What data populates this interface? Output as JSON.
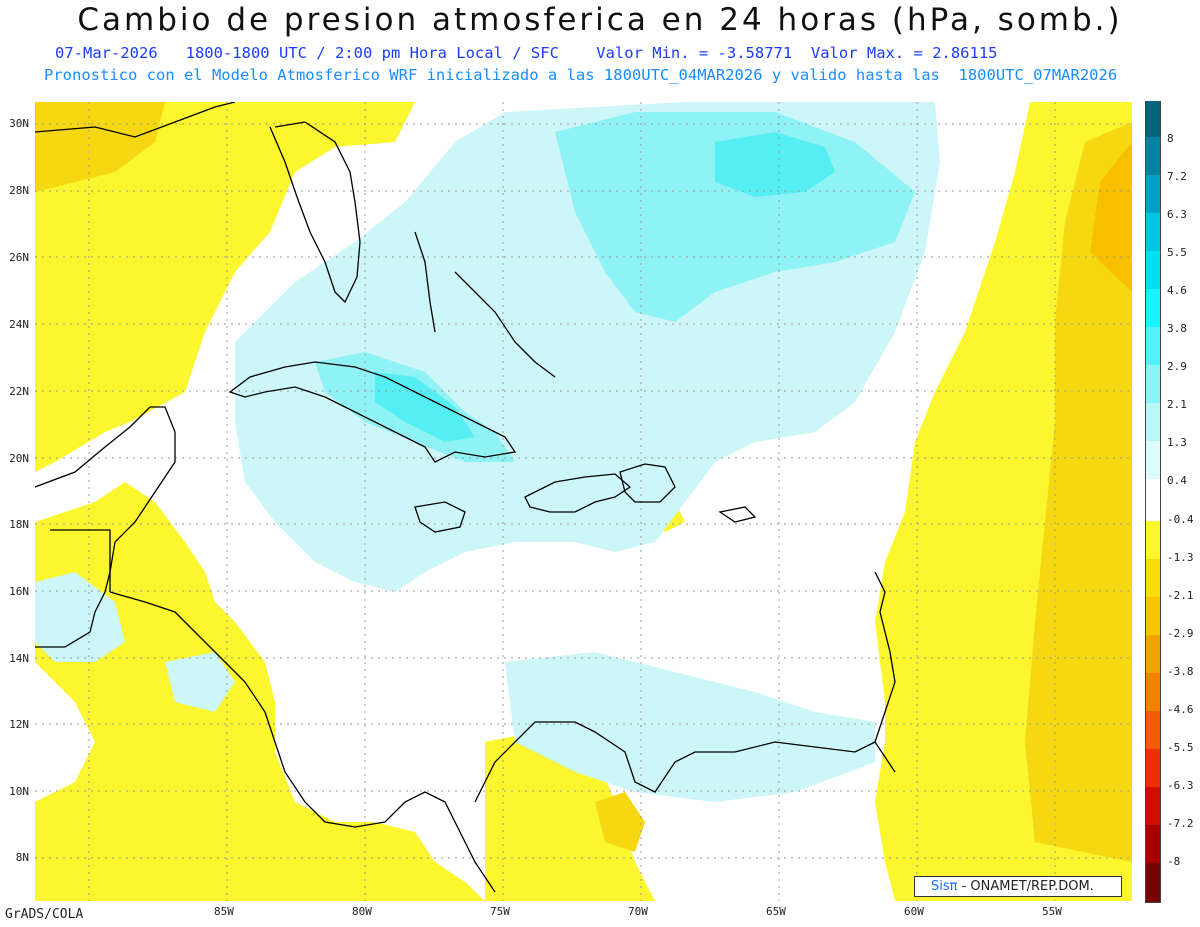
{
  "header": {
    "title": "Cambio de presion atmosferica en 24 horas (hPa, somb.)",
    "line1": "07-Mar-2026   1800-1800 UTC / 2:00 pm Hora Local / SFC    Valor Min. = -3.58771  Valor Max. = 2.86115",
    "line2": "Pronostico con el Modelo Atmosferico WRF inicializado a las 1800UTC_04MAR2026 y valido hasta las  1800UTC_07MAR2026"
  },
  "axes": {
    "lat_labels": [
      "30N",
      "28N",
      "26N",
      "24N",
      "22N",
      "20N",
      "18N",
      "16N",
      "14N",
      "12N",
      "10N",
      "8N"
    ],
    "lon_labels": [
      "85W",
      "80W",
      "75W",
      "70W",
      "65W",
      "60W",
      "55W"
    ]
  },
  "footer": {
    "grads": "GrADS/COLA",
    "credit_sis": "Sisπ",
    "credit_rest": " - ONAMET/REP.DOM."
  },
  "colorbar": {
    "labels": [
      "8",
      "7.2",
      "6.3",
      "5.5",
      "4.6",
      "3.8",
      "2.9",
      "2.1",
      "1.3",
      "0.4",
      "-0.4",
      "-1.3",
      "-2.1",
      "-2.9",
      "-3.8",
      "-4.6",
      "-5.5",
      "-6.3",
      "-7.2",
      "-8"
    ],
    "colors": [
      "#00647a",
      "#0083a3",
      "#009fc8",
      "#00c5e5",
      "#00dff2",
      "#19f3ff",
      "#52f1f6",
      "#86f5f7",
      "#b7f7f8",
      "#dcfbfb",
      "#ffffff",
      "#fbf62d",
      "#f7dd0c",
      "#f6c400",
      "#f4a300",
      "#f48200",
      "#f25c00",
      "#ec3000",
      "#cf0e00",
      "#a60000",
      "#7a0000"
    ]
  },
  "colors": {
    "ocean_neutral": "#ffffff",
    "positive_light": "#ccf6f8",
    "positive_mid": "#8ff2f5",
    "positive_strong": "#55eff3",
    "negative_light": "#fbf62d",
    "negative_mid": "#f6d812",
    "negative_strong": "#f6c000",
    "coast": "#000000",
    "grid": "#9a9a9a"
  }
}
